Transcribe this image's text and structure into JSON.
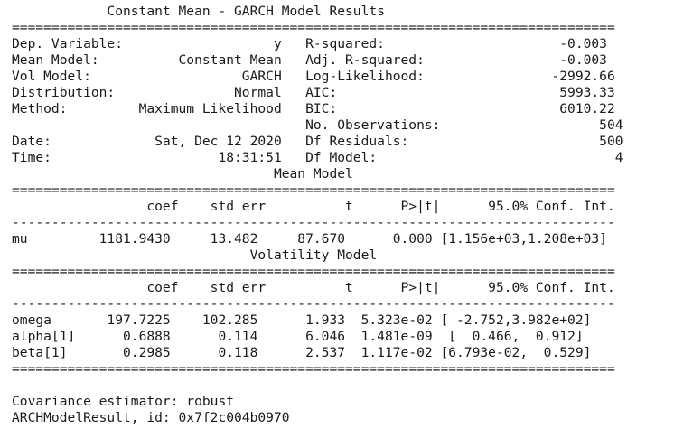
{
  "output": {
    "lines": [
      "            Constant Mean - GARCH Model Results             ",
      "============================================================================",
      "Dep. Variable:                   y   R-squared:                      -0.003",
      "Mean Model:          Constant Mean   Adj. R-squared:                 -0.003",
      "Vol Model:                   GARCH   Log-Likelihood:                -2992.66",
      "Distribution:               Normal   AIC:                            5993.33",
      "Method:         Maximum Likelihood   BIC:                            6010.22",
      "                                     No. Observations:                    504",
      "Date:             Sat, Dec 12 2020   Df Residuals:                        500",
      "Time:                     18:31:51   Df Model:                              4",
      "                                 Mean Model                                 ",
      "============================================================================",
      "                 coef    std err          t      P>|t|      95.0% Conf. Int.",
      "----------------------------------------------------------------------------",
      "mu         1181.9430     13.482     87.670      0.000 [1.156e+03,1.208e+03]",
      "                              Volatility Model                             ",
      "============================================================================",
      "                 coef    std err          t      P>|t|      95.0% Conf. Int.",
      "----------------------------------------------------------------------------",
      "omega       197.7225    102.285      1.933  5.323e-02 [ -2.752,3.982e+02]",
      "alpha[1]      0.6888      0.114      6.046  1.481e-09  [  0.466,  0.912]",
      "beta[1]       0.2985      0.118      2.537  1.117e-02 [6.793e-02,  0.529]",
      "============================================================================",
      "",
      "Covariance estimator: robust",
      "ARCHModelResult, id: 0x7f2c004b0970"
    ]
  }
}
